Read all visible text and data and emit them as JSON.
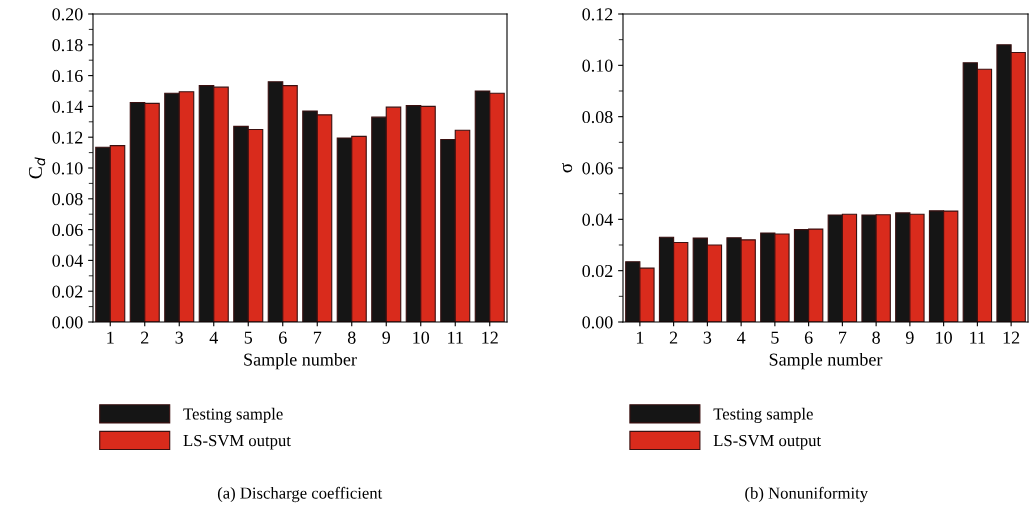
{
  "chart_data": [
    {
      "type": "bar",
      "xlabel": "Sample number",
      "ylabel": "C$_{d}$",
      "categories": [
        "1",
        "2",
        "3",
        "4",
        "5",
        "6",
        "7",
        "8",
        "9",
        "10",
        "11",
        "12"
      ],
      "series": [
        {
          "name": "Testing sample",
          "color": "#151515",
          "values": [
            0.1135,
            0.1425,
            0.1485,
            0.1535,
            0.127,
            0.156,
            0.137,
            0.1195,
            0.133,
            0.1405,
            0.1185,
            0.15
          ]
        },
        {
          "name": "LS-SVM output",
          "color": "#d92b1c",
          "values": [
            0.1145,
            0.142,
            0.1495,
            0.1525,
            0.125,
            0.1535,
            0.1345,
            0.1205,
            0.1395,
            0.14,
            0.1245,
            0.1485
          ]
        }
      ],
      "ylim": [
        0,
        0.2
      ],
      "yticks": [
        {
          "value": 0,
          "label": "0.00"
        },
        {
          "value": 0.02,
          "label": "0.02"
        },
        {
          "value": 0.04,
          "label": "0.04"
        },
        {
          "value": 0.06,
          "label": "0.06"
        },
        {
          "value": 0.08,
          "label": "0.08"
        },
        {
          "value": 0.1,
          "label": "0.10"
        },
        {
          "value": 0.12,
          "label": "0.12"
        },
        {
          "value": 0.14,
          "label": "0.14"
        },
        {
          "value": 0.16,
          "label": "0.16"
        },
        {
          "value": 0.18,
          "label": "0.18"
        },
        {
          "value": 0.2,
          "label": "0.20"
        }
      ],
      "grid": false,
      "legend": "bottom",
      "annotations": [
        "(a) Discharge coefficient"
      ]
    },
    {
      "type": "bar",
      "xlabel": "Sample number",
      "ylabel": "σ",
      "categories": [
        "1",
        "2",
        "3",
        "4",
        "5",
        "6",
        "7",
        "8",
        "9",
        "10",
        "11",
        "12"
      ],
      "series": [
        {
          "name": "Testing sample",
          "color": "#151515",
          "values": [
            0.0235,
            0.033,
            0.0327,
            0.0328,
            0.0347,
            0.036,
            0.0417,
            0.0417,
            0.0425,
            0.0433,
            0.101,
            0.108
          ]
        },
        {
          "name": "LS-SVM output",
          "color": "#d92b1c",
          "values": [
            0.021,
            0.031,
            0.03,
            0.032,
            0.0343,
            0.0362,
            0.042,
            0.0418,
            0.042,
            0.0432,
            0.0985,
            0.105
          ]
        }
      ],
      "ylim": [
        0,
        0.12
      ],
      "yticks": [
        {
          "value": 0,
          "label": "0.00"
        },
        {
          "value": 0.02,
          "label": "0.02"
        },
        {
          "value": 0.04,
          "label": "0.04"
        },
        {
          "value": 0.06,
          "label": "0.06"
        },
        {
          "value": 0.08,
          "label": "0.08"
        },
        {
          "value": 0.1,
          "label": "0.10"
        },
        {
          "value": 0.12,
          "label": "0.12"
        }
      ],
      "grid": false,
      "legend": "bottom",
      "annotations": [
        "(b) Nonuniformity"
      ]
    }
  ]
}
